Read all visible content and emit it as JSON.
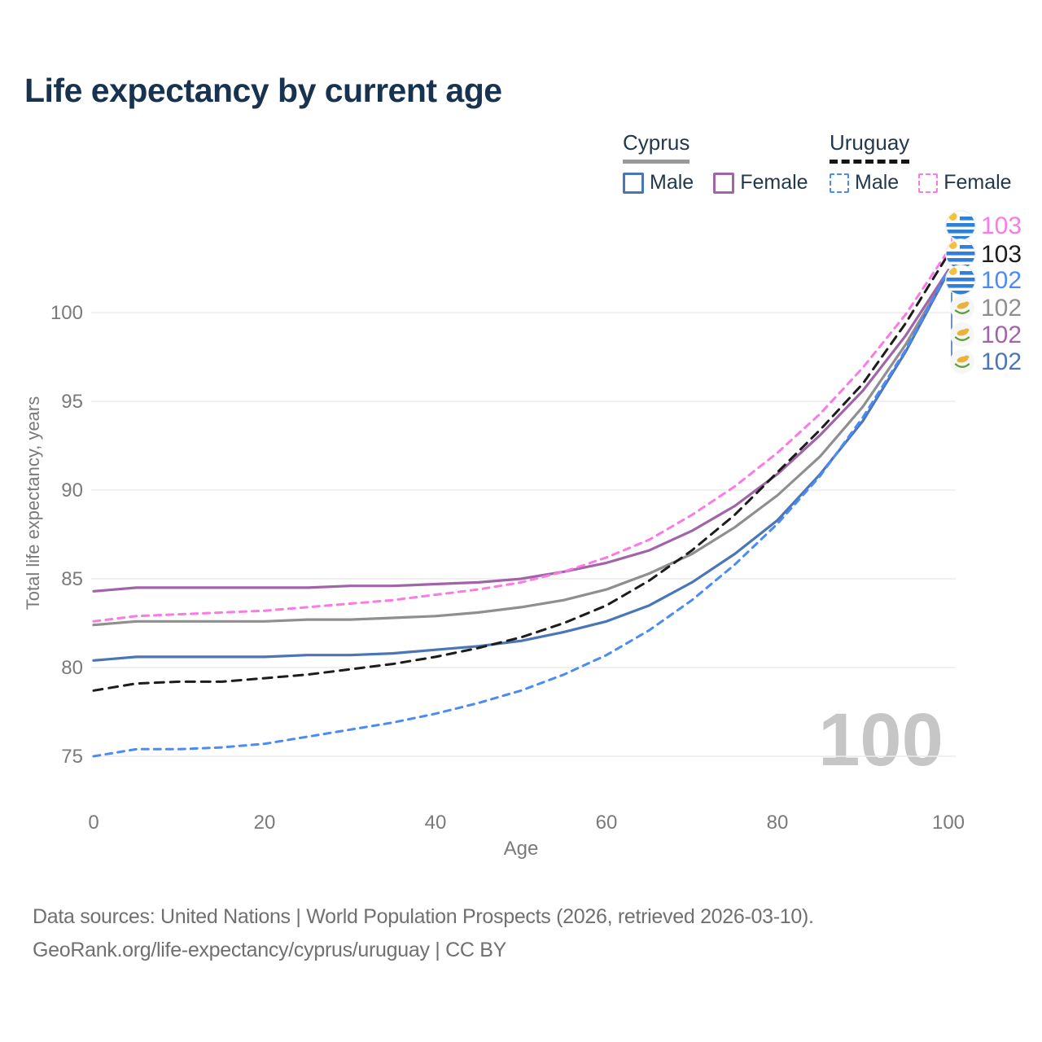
{
  "title": "Life expectancy by current age",
  "legend": {
    "groups": [
      {
        "country": "Cyprus",
        "line_style": "solid",
        "underline_color": "#999999",
        "items": [
          {
            "label": "Male",
            "color": "#4a76b8"
          },
          {
            "label": "Female",
            "color": "#a164a9"
          }
        ]
      },
      {
        "country": "Uruguay",
        "line_style": "dashed",
        "underline_color": "#141414",
        "items": [
          {
            "label": "Male",
            "color": "#4b8bf5"
          },
          {
            "label": "Female",
            "color": "#fb7ae3"
          }
        ]
      }
    ]
  },
  "chart_data": {
    "type": "line",
    "title": "Life expectancy by current age",
    "xlabel": "Age",
    "ylabel": "Total life expectancy, years",
    "xticks": [
      0,
      20,
      40,
      60,
      80,
      100
    ],
    "yticks": [
      75,
      80,
      85,
      90,
      95,
      100
    ],
    "xlim": [
      0,
      100
    ],
    "ylim": [
      73.5,
      105.5
    ],
    "grid": "horizontal",
    "legend_position": "top-right",
    "x": [
      0,
      5,
      10,
      15,
      20,
      25,
      30,
      35,
      40,
      45,
      50,
      55,
      60,
      65,
      70,
      75,
      80,
      85,
      90,
      95,
      100
    ],
    "series": [
      {
        "id": "cyprus_total",
        "name": "Cyprus Both sexes",
        "country": "Cyprus",
        "color": "#8f8f8f",
        "dash": false,
        "end_label": "102",
        "flag": "cyprus",
        "values": [
          82.4,
          82.6,
          82.6,
          82.6,
          82.6,
          82.7,
          82.7,
          82.8,
          82.9,
          83.1,
          83.4,
          83.8,
          84.4,
          85.3,
          86.4,
          87.9,
          89.7,
          91.9,
          94.7,
          98.2,
          102.3
        ]
      },
      {
        "id": "cyprus_female",
        "name": "Cyprus Female",
        "country": "Cyprus",
        "color": "#a164a9",
        "dash": false,
        "end_label": "102",
        "flag": "cyprus",
        "values": [
          84.3,
          84.5,
          84.5,
          84.5,
          84.5,
          84.5,
          84.6,
          84.6,
          84.7,
          84.8,
          85.0,
          85.4,
          85.9,
          86.6,
          87.7,
          89.1,
          90.9,
          93.1,
          95.6,
          98.7,
          102.4
        ]
      },
      {
        "id": "cyprus_male",
        "name": "Cyprus Male",
        "country": "Cyprus",
        "color": "#4a76b8",
        "dash": false,
        "end_label": "102",
        "flag": "cyprus",
        "values": [
          80.4,
          80.6,
          80.6,
          80.6,
          80.6,
          80.7,
          80.7,
          80.8,
          81.0,
          81.2,
          81.5,
          82.0,
          82.6,
          83.5,
          84.8,
          86.4,
          88.3,
          90.9,
          93.9,
          97.8,
          102.3
        ]
      },
      {
        "id": "uruguay_total",
        "name": "Uruguay Both sexes",
        "country": "Uruguay",
        "color": "#1c1c1c",
        "dash": true,
        "end_label": "103",
        "flag": "uruguay",
        "values": [
          78.7,
          79.1,
          79.2,
          79.2,
          79.4,
          79.6,
          79.9,
          80.2,
          80.6,
          81.1,
          81.7,
          82.5,
          83.5,
          84.9,
          86.6,
          88.6,
          91.0,
          93.4,
          96.0,
          99.4,
          103.3
        ]
      },
      {
        "id": "uruguay_male",
        "name": "Uruguay Male",
        "country": "Uruguay",
        "color": "#4b8bf5",
        "dash": true,
        "end_label": "102",
        "flag": "uruguay",
        "values": [
          75.0,
          75.4,
          75.4,
          75.5,
          75.7,
          76.1,
          76.5,
          76.9,
          77.4,
          78.0,
          78.7,
          79.6,
          80.7,
          82.1,
          83.8,
          85.8,
          88.1,
          90.8,
          94.1,
          97.9,
          102.4
        ]
      },
      {
        "id": "uruguay_female",
        "name": "Uruguay Female",
        "country": "Uruguay",
        "color": "#fb7ae3",
        "dash": true,
        "end_label": "103",
        "flag": "uruguay",
        "values": [
          82.6,
          82.9,
          83.0,
          83.1,
          83.2,
          83.4,
          83.6,
          83.8,
          84.1,
          84.4,
          84.8,
          85.4,
          86.2,
          87.2,
          88.6,
          90.2,
          92.1,
          94.3,
          96.9,
          99.9,
          103.5
        ]
      }
    ],
    "annotation_order": [
      "uruguay_female",
      "uruguay_total",
      "uruguay_male",
      "cyprus_total",
      "cyprus_female",
      "cyprus_male"
    ]
  },
  "watermark": "100",
  "footer": {
    "line1": "Data sources: United Nations | World Population Prospects (2026, retrieved 2026-03-10).",
    "line2": "GeoRank.org/life-expectancy/cyprus/uruguay | CC BY"
  },
  "colors": {
    "title": "#18334f",
    "axis_text": "#7a7a7a",
    "gridline": "#ececec",
    "watermark": "#c6c6c6",
    "footer_text": "#707070"
  }
}
